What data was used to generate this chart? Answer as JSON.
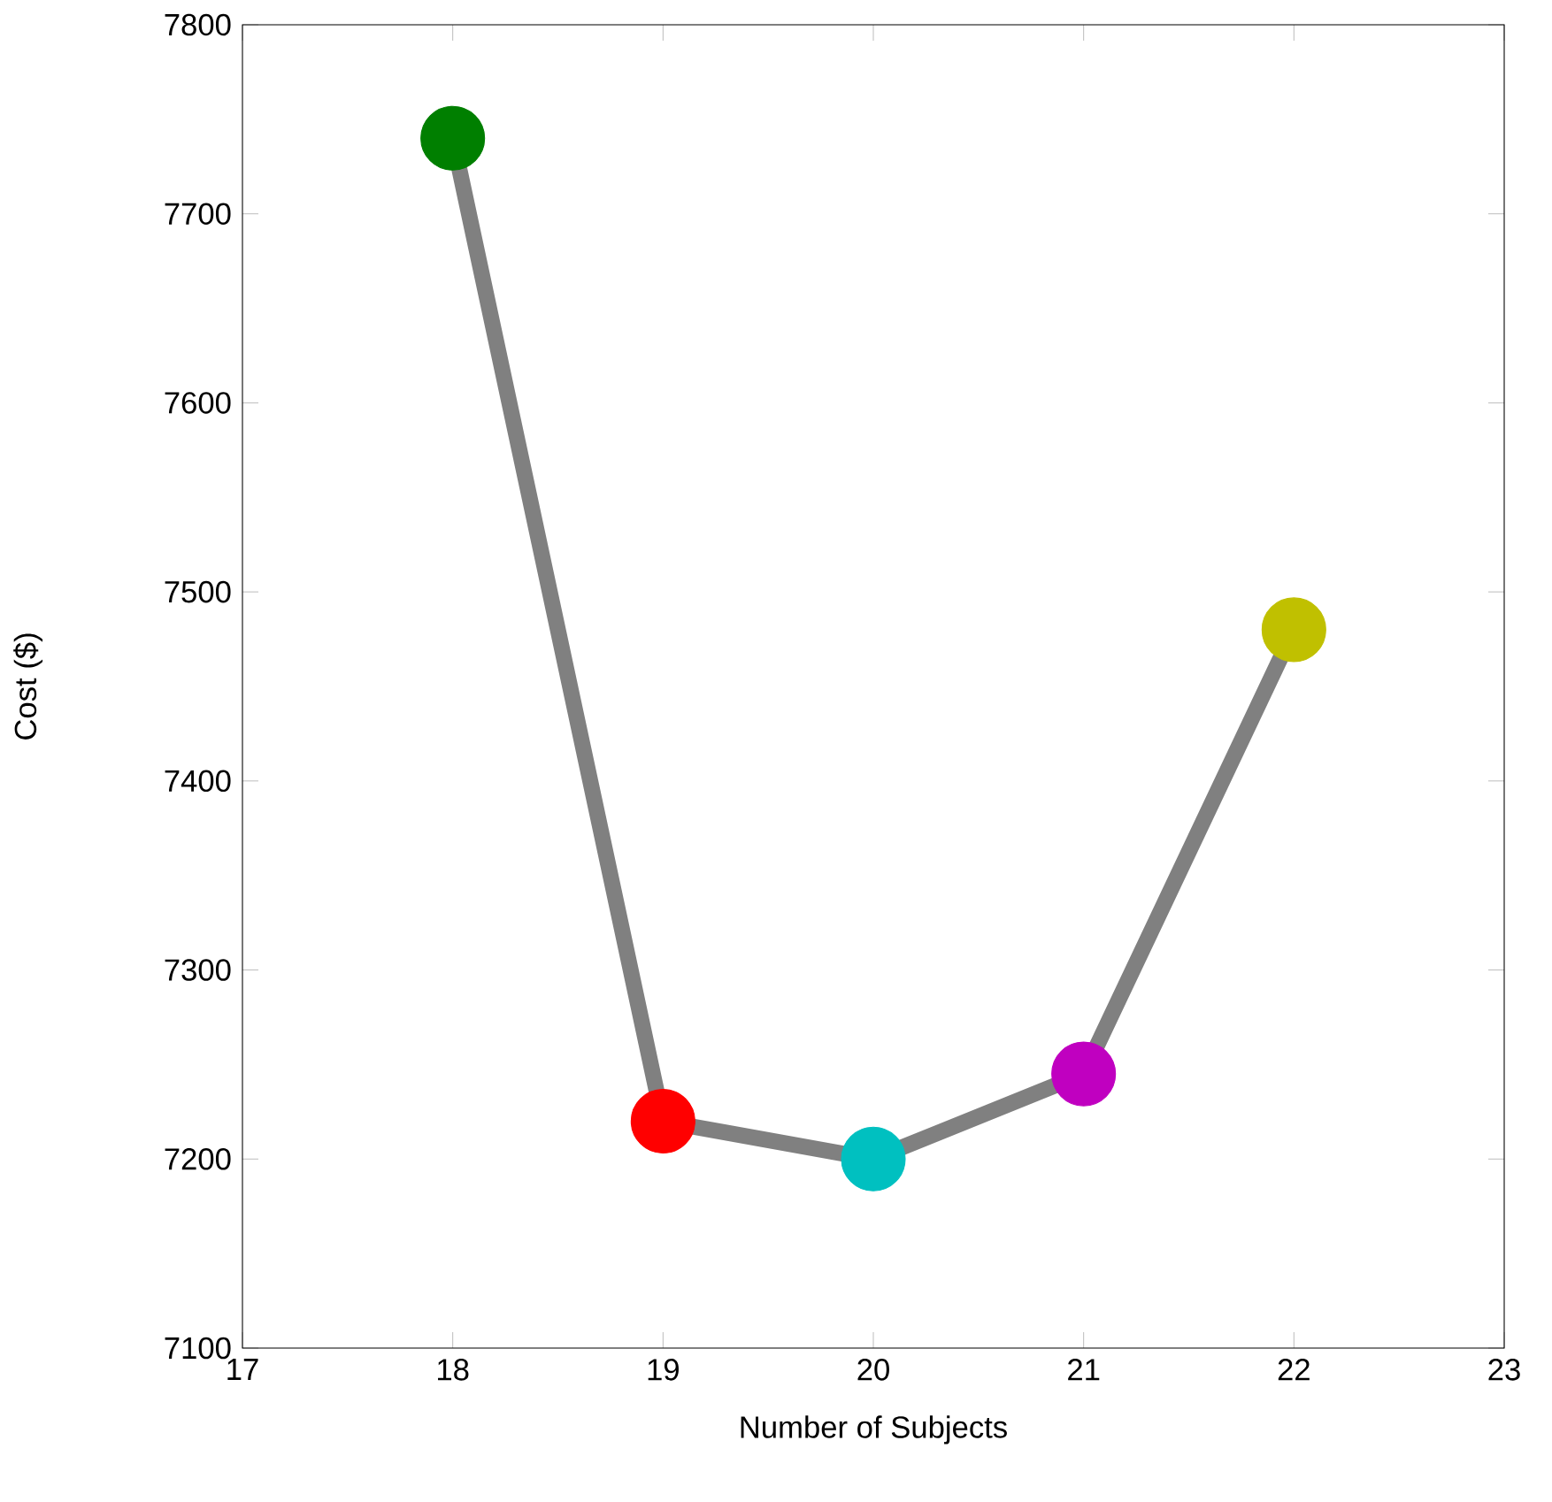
{
  "chart_data": {
    "type": "line",
    "xlabel": "Number of Subjects",
    "ylabel": "Cost ($)",
    "x": [
      18,
      19,
      20,
      21,
      22
    ],
    "series": [
      {
        "color": "#808080",
        "values": [
          7740,
          7220,
          7200,
          7245,
          7480
        ],
        "colors": [
          "#007f00",
          "#ff0000",
          "#00c0c0",
          "#c000c0",
          "#c0c000"
        ]
      }
    ],
    "xlim": [
      17,
      23
    ],
    "ylim": [
      7100,
      7800
    ],
    "xticks": [
      17,
      18,
      19,
      20,
      21,
      22,
      23
    ],
    "yticks": [
      7100,
      7200,
      7300,
      7400,
      7500,
      7600,
      7700,
      7800
    ],
    "marker": "circle",
    "line_style": "solid"
  }
}
